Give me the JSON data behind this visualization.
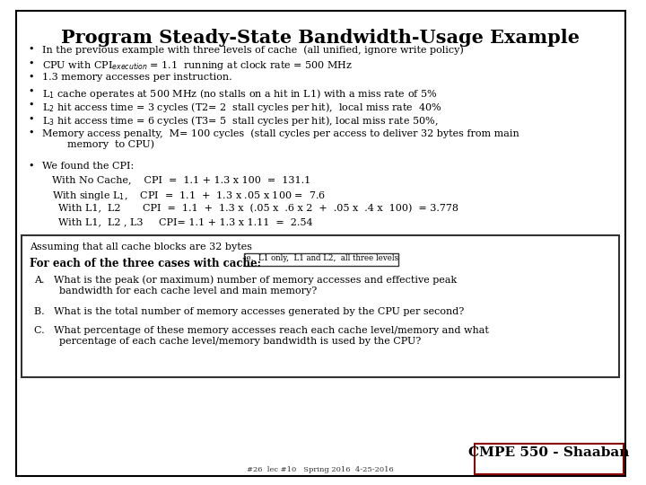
{
  "title": "Program Steady-State Bandwidth-Usage Example",
  "bg_color": "#ffffff",
  "border_color": "#000000",
  "title_fontsize": 15,
  "body_fontsize": 8.0,
  "bullet_lines": [
    "In the previous example with three levels of cache  (all unified, ignore write policy)",
    "CPU with CPI$_{execution}$ = 1.1  running at clock rate = 500 MHz",
    "1.3 memory accesses per instruction.",
    "L$_1$ cache operates at 500 MHz (no stalls on a hit in L1) with a miss rate of 5%",
    "L$_2$ hit access time = 3 cycles (T2= 2  stall cycles per hit),  local miss rate  40%",
    "L$_3$ hit access time = 6 cycles (T3= 5  stall cycles per hit), local miss rate 50%,",
    "Memory access penalty,  M= 100 cycles  (stall cycles per access to deliver 32 bytes from main\n        memory  to CPU)"
  ],
  "cpi_header": "We found the CPI:",
  "cpi_lines": [
    "With No Cache,    CPI  =  1.1 + 1.3 x 100  =  131.1",
    "With single L$_1$,    CPI  =  1.1  +  1.3 x .05 x 100 =  7.6",
    "  With L1,  L2       CPI  =  1.1  +  1.3 x  (.05 x  .6 x 2  +  .05 x  .4 x  100)  = 3.778",
    "  With L1,  L2 , L3     CPI= 1.1 + 1.3 x 1.11  =  2.54"
  ],
  "box_text_1": "Assuming that all cache blocks are 32 bytes",
  "box_bold_text": "For each of the three cases with cache:",
  "box_inline_label": "ie.  L1 only,  L1 and L2,  all three levels",
  "box_items": [
    "A.   What is the peak (or maximum) number of memory accesses and effective peak\n        bandwidth for each cache level and main memory?",
    "B.   What is the total number of memory accesses generated by the CPU per second?",
    "C.   What percentage of these memory accesses reach each cache level/memory and what\n        percentage of each cache level/memory bandwidth is used by the CPU?"
  ],
  "footer_text": "CMPE 550 - Shaaban",
  "footer_sub": "#26  lec #10   Spring 2016  4-25-2016"
}
